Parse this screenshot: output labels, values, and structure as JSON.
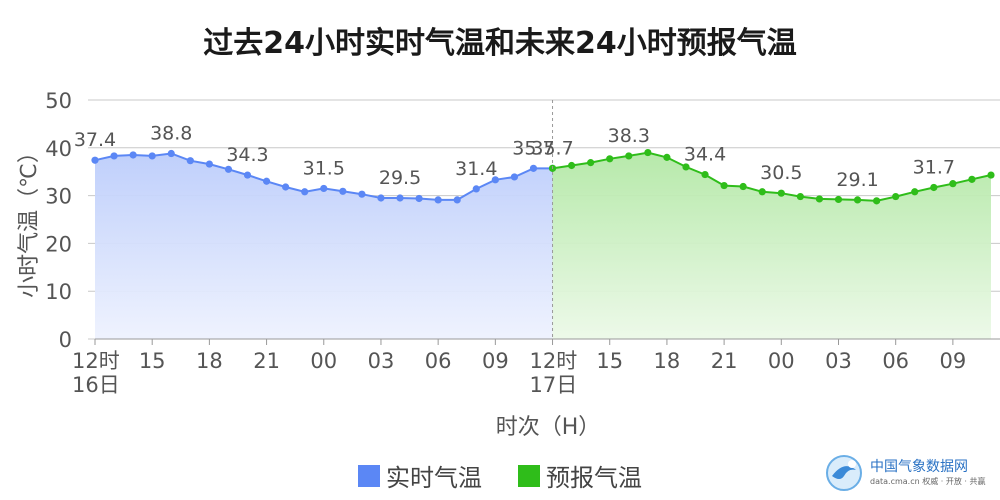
{
  "title": "过去24小时实时气温和未来24小时预报气温",
  "legend": [
    {
      "label": "实时气温",
      "color": "#5b87f5"
    },
    {
      "label": "预报气温",
      "color": "#2fbd1a"
    }
  ],
  "watermark": {
    "name": "中国气象数据网",
    "sub": "data.cma.cn 权威 · 开放 · 共赢"
  },
  "chart_data": {
    "type": "area",
    "title": "过去24小时实时气温和未来24小时预报气温",
    "xlabel": "时次（H）",
    "ylabel": "小时气温（℃）",
    "ylim": [
      0,
      50
    ],
    "yticks": [
      0,
      10,
      20,
      30,
      40,
      50
    ],
    "grid": true,
    "legend_position": "bottom-center",
    "x_ticks": [
      {
        "index": 0,
        "label": "12时",
        "sub": "16日"
      },
      {
        "index": 3,
        "label": "15"
      },
      {
        "index": 6,
        "label": "18"
      },
      {
        "index": 9,
        "label": "21"
      },
      {
        "index": 12,
        "label": "00"
      },
      {
        "index": 15,
        "label": "03"
      },
      {
        "index": 18,
        "label": "06"
      },
      {
        "index": 21,
        "label": "09"
      },
      {
        "index": 24,
        "label": "12时",
        "sub": "17日"
      },
      {
        "index": 27,
        "label": "15"
      },
      {
        "index": 30,
        "label": "18"
      },
      {
        "index": 33,
        "label": "21"
      },
      {
        "index": 36,
        "label": "00"
      },
      {
        "index": 39,
        "label": "03"
      },
      {
        "index": 42,
        "label": "06"
      },
      {
        "index": 45,
        "label": "09"
      }
    ],
    "series": [
      {
        "name": "实时气温",
        "color": "#5b87f5",
        "start_index": 0,
        "values": [
          37.4,
          38.3,
          38.5,
          38.3,
          38.8,
          37.3,
          36.6,
          35.5,
          34.3,
          33.0,
          31.8,
          30.8,
          31.5,
          30.9,
          30.3,
          29.5,
          29.5,
          29.4,
          29.1,
          29.1,
          31.4,
          33.3,
          33.9,
          35.7,
          35.7
        ],
        "labels": [
          {
            "index": 0,
            "text": "37.4"
          },
          {
            "index": 4,
            "text": "38.8"
          },
          {
            "index": 8,
            "text": "34.3"
          },
          {
            "index": 12,
            "text": "31.5"
          },
          {
            "index": 16,
            "text": "29.5"
          },
          {
            "index": 20,
            "text": "31.4"
          },
          {
            "index": 23,
            "text": "35.7"
          }
        ]
      },
      {
        "name": "预报气温",
        "color": "#2fbd1a",
        "start_index": 24,
        "values": [
          35.7,
          36.3,
          36.9,
          37.7,
          38.3,
          39.0,
          38.0,
          36.0,
          34.4,
          32.1,
          31.9,
          30.8,
          30.5,
          29.8,
          29.3,
          29.2,
          29.1,
          28.9,
          29.8,
          30.8,
          31.7,
          32.5,
          33.4,
          34.3
        ],
        "labels": [
          {
            "index": 24,
            "text": "35.7"
          },
          {
            "index": 28,
            "text": "38.3"
          },
          {
            "index": 32,
            "text": "34.4"
          },
          {
            "index": 36,
            "text": "30.5"
          },
          {
            "index": 40,
            "text": "29.1"
          },
          {
            "index": 44,
            "text": "31.7"
          }
        ]
      }
    ]
  }
}
